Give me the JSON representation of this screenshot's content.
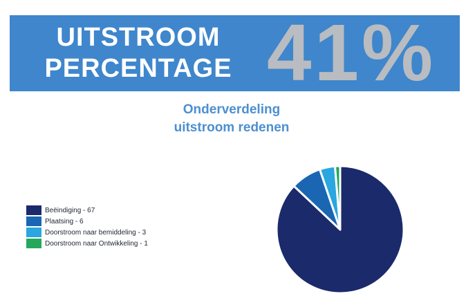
{
  "header": {
    "title_line1": "UITSTROOM",
    "title_line2": "PERCENTAGE",
    "percentage": "41%",
    "banner_color": "#3f86cc"
  },
  "subtitle": {
    "line1": "Onderverdeling",
    "line2": "uitstroom redenen"
  },
  "chart_data": {
    "type": "pie",
    "title": "Onderverdeling uitstroom redenen",
    "categories": [
      "Beëindiging",
      "Plaatsing",
      "Doorstroom naar bemiddeling",
      "Doorstroom naar Ontwikkeling"
    ],
    "values": [
      67,
      6,
      3,
      1
    ],
    "colors": [
      "#1b2a6b",
      "#1a66b3",
      "#2aa6e0",
      "#25a85c"
    ],
    "legend_labels": [
      "Beëindiging - 67",
      "Plaatsing - 6",
      "Doorstroom naar bemiddeling - 3",
      "Doorstroom naar Ontwikkeling - 1"
    ],
    "legend_position": "left"
  }
}
